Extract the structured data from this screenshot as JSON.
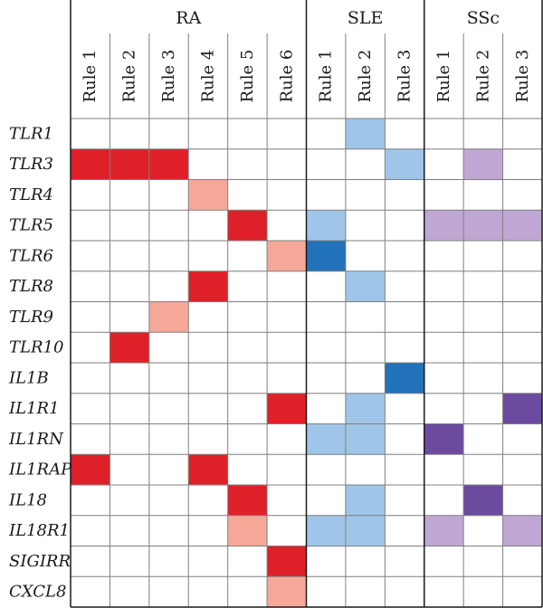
{
  "chart_data": {
    "type": "heatmap",
    "groups": [
      {
        "name": "RA",
        "rules": [
          "Rule 1",
          "Rule 2",
          "Rule 3",
          "Rule 4",
          "Rule 5",
          "Rule 6"
        ],
        "color_scale": {
          "light": "#f5a898",
          "dark": "#df2028"
        }
      },
      {
        "name": "SLE",
        "rules": [
          "Rule 1",
          "Rule 2",
          "Rule 3"
        ],
        "color_scale": {
          "light": "#9fc6e8",
          "dark": "#2172b8"
        }
      },
      {
        "name": "SSc",
        "rules": [
          "Rule 1",
          "Rule 2",
          "Rule 3"
        ],
        "color_scale": {
          "light": "#c0a7d3",
          "dark": "#6c4aa0"
        }
      }
    ],
    "genes": [
      "TLR1",
      "TLR3",
      "TLR4",
      "TLR5",
      "TLR6",
      "TLR8",
      "TLR9",
      "TLR10",
      "IL1B",
      "IL1R1",
      "IL1RN",
      "IL1RAP",
      "IL18",
      "IL18R1",
      "SIGIRR",
      "CXCL8"
    ],
    "level_legend": {
      "0": "none",
      "1": "light",
      "2": "dark"
    },
    "matrix": [
      [
        0,
        0,
        0,
        0,
        0,
        0,
        0,
        1,
        0,
        0,
        0,
        0
      ],
      [
        2,
        2,
        2,
        0,
        0,
        0,
        0,
        0,
        1,
        0,
        1,
        0
      ],
      [
        0,
        0,
        0,
        1,
        0,
        0,
        0,
        0,
        0,
        0,
        0,
        0
      ],
      [
        0,
        0,
        0,
        0,
        2,
        0,
        1,
        0,
        0,
        1,
        1,
        1
      ],
      [
        0,
        0,
        0,
        0,
        0,
        1,
        2,
        0,
        0,
        0,
        0,
        0
      ],
      [
        0,
        0,
        0,
        2,
        0,
        0,
        0,
        1,
        0,
        0,
        0,
        0
      ],
      [
        0,
        0,
        1,
        0,
        0,
        0,
        0,
        0,
        0,
        0,
        0,
        0
      ],
      [
        0,
        2,
        0,
        0,
        0,
        0,
        0,
        0,
        0,
        0,
        0,
        0
      ],
      [
        0,
        0,
        0,
        0,
        0,
        0,
        0,
        0,
        2,
        0,
        0,
        0
      ],
      [
        0,
        0,
        0,
        0,
        0,
        2,
        0,
        1,
        0,
        0,
        0,
        2
      ],
      [
        0,
        0,
        0,
        0,
        0,
        0,
        1,
        1,
        0,
        2,
        0,
        0
      ],
      [
        2,
        0,
        0,
        2,
        0,
        0,
        0,
        0,
        0,
        0,
        0,
        0
      ],
      [
        0,
        0,
        0,
        0,
        2,
        0,
        0,
        1,
        0,
        0,
        2,
        0
      ],
      [
        0,
        0,
        0,
        0,
        1,
        0,
        1,
        1,
        0,
        1,
        0,
        1
      ],
      [
        0,
        0,
        0,
        0,
        0,
        2,
        0,
        0,
        0,
        0,
        0,
        0
      ],
      [
        0,
        0,
        0,
        0,
        0,
        1,
        0,
        0,
        0,
        0,
        0,
        0
      ]
    ],
    "grid_color": "#7f7f7f",
    "group_separator_color": "#1a1a1a"
  }
}
